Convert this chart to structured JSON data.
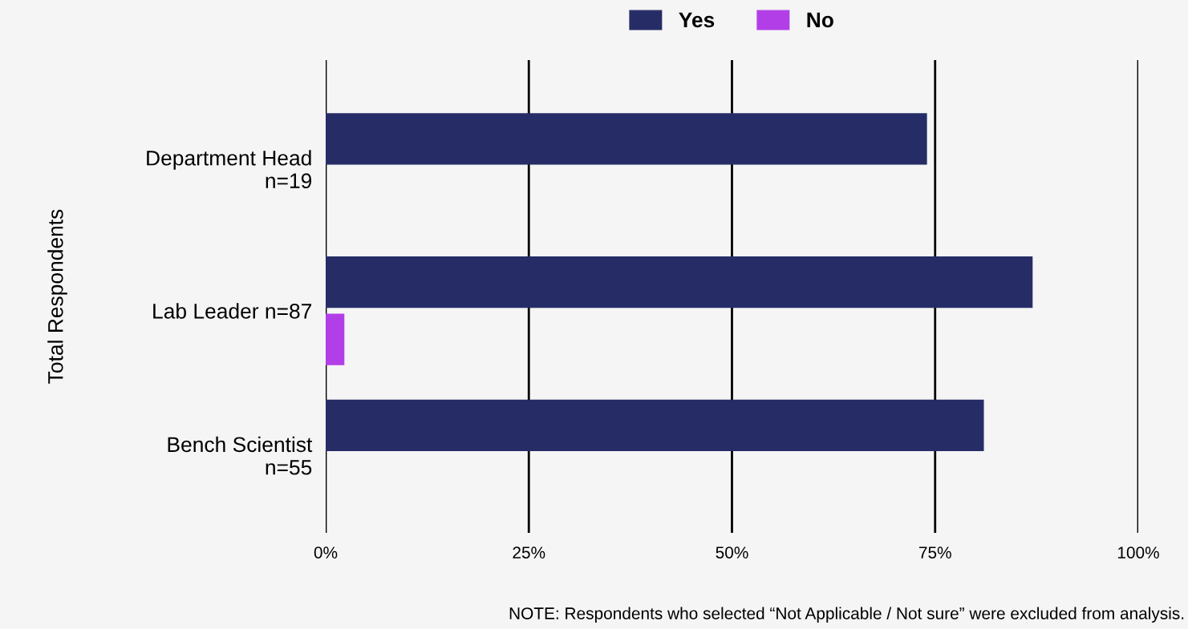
{
  "chart_data": {
    "type": "bar",
    "orientation": "horizontal",
    "ylabel": "Total Respondents",
    "categories": [
      "Department Head\nn=19",
      "Lab Leader n=87",
      "Bench Scientist\nn=55"
    ],
    "series": [
      {
        "name": "Yes",
        "color": "#262d66",
        "values": [
          74,
          87,
          81
        ]
      },
      {
        "name": "No",
        "color": "#b23ee8",
        "values": [
          null,
          2.3,
          null
        ]
      }
    ],
    "xlim": [
      0,
      100
    ],
    "xticks": [
      {
        "value": 0,
        "label": "0%"
      },
      {
        "value": 25,
        "label": "25%"
      },
      {
        "value": 50,
        "label": "50%"
      },
      {
        "value": 75,
        "label": "75%"
      },
      {
        "value": 100,
        "label": "100%"
      }
    ],
    "grid": "x",
    "legend": "top",
    "annotations": [
      "NOTE: Respondents who selected “Not Applicable / Not sure” were excluded from analysis."
    ]
  }
}
